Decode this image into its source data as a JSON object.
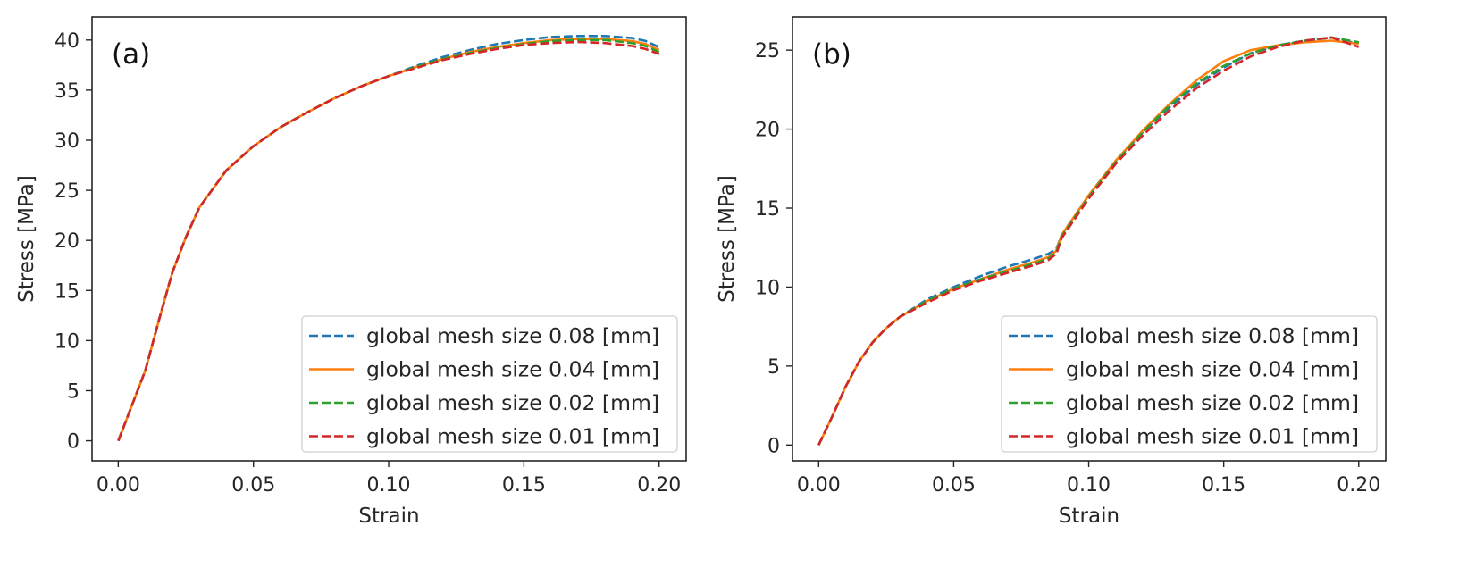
{
  "chart_data": [
    {
      "type": "line",
      "panel_label": "(a)",
      "xlabel": "Strain",
      "ylabel": "Stress [MPa]",
      "xlim": [
        -0.0097,
        0.21
      ],
      "ylim": [
        -2.0,
        42.3
      ],
      "xticks": [
        0.0,
        0.05,
        0.1,
        0.15,
        0.2
      ],
      "xtick_labels": [
        "0.00",
        "0.05",
        "0.10",
        "0.15",
        "0.20"
      ],
      "yticks": [
        0,
        5,
        10,
        15,
        20,
        25,
        30,
        35,
        40
      ],
      "ytick_labels": [
        "0",
        "5",
        "10",
        "15",
        "20",
        "25",
        "30",
        "35",
        "40"
      ],
      "grid": false,
      "legend_position": "lower-right",
      "x": [
        0.0,
        0.005,
        0.01,
        0.015,
        0.02,
        0.025,
        0.03,
        0.04,
        0.05,
        0.06,
        0.07,
        0.08,
        0.09,
        0.1,
        0.11,
        0.12,
        0.13,
        0.14,
        0.15,
        0.16,
        0.17,
        0.18,
        0.19,
        0.195,
        0.2
      ],
      "series": [
        {
          "name": "global mesh size 0.08 [mm]",
          "color": "#1f77b4",
          "style": "dashed",
          "values": [
            0.0,
            3.5,
            7.0,
            12.0,
            16.8,
            20.3,
            23.3,
            27.0,
            29.4,
            31.3,
            32.8,
            34.2,
            35.4,
            36.4,
            37.4,
            38.3,
            39.0,
            39.6,
            40.0,
            40.3,
            40.4,
            40.4,
            40.2,
            39.9,
            39.3
          ]
        },
        {
          "name": "global mesh size 0.04 [mm]",
          "color": "#ff7f0e",
          "style": "solid",
          "values": [
            0.0,
            3.5,
            7.0,
            12.0,
            16.8,
            20.3,
            23.3,
            27.0,
            29.4,
            31.3,
            32.8,
            34.2,
            35.4,
            36.4,
            37.3,
            38.1,
            38.8,
            39.3,
            39.7,
            40.0,
            40.1,
            40.1,
            39.9,
            39.6,
            39.0
          ]
        },
        {
          "name": "global mesh size 0.02 [mm]",
          "color": "#2ca02c",
          "style": "dashed",
          "values": [
            0.0,
            3.5,
            7.0,
            12.0,
            16.8,
            20.3,
            23.3,
            27.0,
            29.4,
            31.3,
            32.8,
            34.2,
            35.4,
            36.4,
            37.3,
            38.1,
            38.7,
            39.2,
            39.6,
            39.9,
            40.0,
            40.0,
            39.7,
            39.4,
            38.8
          ]
        },
        {
          "name": "global mesh size 0.01 [mm]",
          "color": "#d62728",
          "style": "dashed",
          "values": [
            0.0,
            3.5,
            7.0,
            12.0,
            16.8,
            20.3,
            23.3,
            27.0,
            29.4,
            31.3,
            32.8,
            34.2,
            35.4,
            36.4,
            37.2,
            38.0,
            38.6,
            39.1,
            39.5,
            39.7,
            39.8,
            39.7,
            39.4,
            39.1,
            38.6
          ]
        }
      ]
    },
    {
      "type": "line",
      "panel_label": "(b)",
      "xlabel": "Strain",
      "ylabel": "Stress [MPa]",
      "xlim": [
        -0.0097,
        0.21
      ],
      "ylim": [
        -1.0,
        27.1
      ],
      "xticks": [
        0.0,
        0.05,
        0.1,
        0.15,
        0.2
      ],
      "xtick_labels": [
        "0.00",
        "0.05",
        "0.10",
        "0.15",
        "0.20"
      ],
      "yticks": [
        0,
        5,
        10,
        15,
        20,
        25
      ],
      "ytick_labels": [
        "0",
        "5",
        "10",
        "15",
        "20",
        "25"
      ],
      "grid": false,
      "legend_position": "lower-right",
      "x": [
        0.0,
        0.005,
        0.01,
        0.015,
        0.02,
        0.025,
        0.03,
        0.04,
        0.05,
        0.06,
        0.07,
        0.08,
        0.085,
        0.088,
        0.09,
        0.1,
        0.11,
        0.12,
        0.13,
        0.14,
        0.15,
        0.16,
        0.17,
        0.18,
        0.19,
        0.2
      ],
      "series": [
        {
          "name": "global mesh size 0.08 [mm]",
          "color": "#1f77b4",
          "style": "dashed",
          "values": [
            0.0,
            1.8,
            3.7,
            5.3,
            6.5,
            7.4,
            8.1,
            9.2,
            10.0,
            10.7,
            11.3,
            11.8,
            12.1,
            12.4,
            13.3,
            15.8,
            18.0,
            19.8,
            21.4,
            22.8,
            23.9,
            24.8,
            25.3,
            25.6,
            25.8,
            25.4
          ]
        },
        {
          "name": "global mesh size 0.04 [mm]",
          "color": "#ff7f0e",
          "style": "solid",
          "values": [
            0.0,
            1.8,
            3.7,
            5.3,
            6.5,
            7.4,
            8.1,
            9.1,
            9.9,
            10.5,
            11.1,
            11.6,
            11.9,
            12.3,
            13.3,
            15.8,
            18.0,
            19.9,
            21.6,
            23.1,
            24.3,
            25.0,
            25.3,
            25.5,
            25.6,
            25.4
          ]
        },
        {
          "name": "global mesh size 0.02 [mm]",
          "color": "#2ca02c",
          "style": "dashed",
          "values": [
            0.0,
            1.8,
            3.7,
            5.3,
            6.5,
            7.4,
            8.1,
            9.1,
            9.9,
            10.5,
            11.0,
            11.5,
            11.8,
            12.2,
            13.2,
            15.7,
            17.9,
            19.8,
            21.5,
            22.9,
            24.0,
            24.8,
            25.3,
            25.6,
            25.8,
            25.5
          ]
        },
        {
          "name": "global mesh size 0.01 [mm]",
          "color": "#d62728",
          "style": "dashed",
          "values": [
            0.0,
            1.8,
            3.7,
            5.3,
            6.5,
            7.4,
            8.1,
            9.0,
            9.8,
            10.4,
            10.9,
            11.4,
            11.7,
            12.1,
            13.1,
            15.6,
            17.8,
            19.6,
            21.2,
            22.6,
            23.7,
            24.6,
            25.2,
            25.6,
            25.8,
            25.2
          ]
        }
      ]
    }
  ]
}
